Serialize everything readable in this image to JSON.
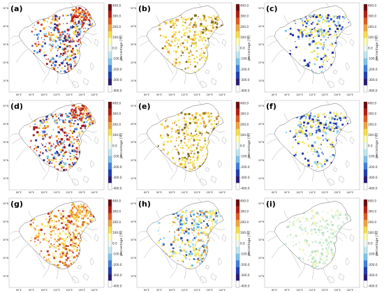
{
  "figure": {
    "panels": [
      {
        "label": "(a)",
        "style": "mixed_red"
      },
      {
        "label": "(b)",
        "style": "yellow_low"
      },
      {
        "label": "(c)",
        "style": "yellow_blue"
      },
      {
        "label": "(d)",
        "style": "mixed_red"
      },
      {
        "label": "(e)",
        "style": "yellow_low"
      },
      {
        "label": "(f)",
        "style": "yellow_blue"
      },
      {
        "label": "(g)",
        "style": "orange_high"
      },
      {
        "label": "(h)",
        "style": "mixed_cyan"
      },
      {
        "label": "(i)",
        "style": "green_low"
      }
    ],
    "lat_ticks": [
      "50°N",
      "40°N",
      "30°N",
      "20°N",
      "10°N"
    ],
    "lon_ticks": [
      "80°E",
      "90°E",
      "100°E",
      "110°E",
      "120°E",
      "130°E",
      "140°E"
    ],
    "colorbar": {
      "title": "percentage [%]",
      "ticks": [
        "400.0",
        "300.0",
        "200.0",
        "100.0",
        "0.0",
        "-100.0",
        "-200.0",
        "-300.0",
        "-400.0"
      ],
      "colors": [
        "#ffffff",
        "#2b1a7a",
        "#1f3fb5",
        "#3f7fe0",
        "#7fc4ee",
        "#bfe9f2",
        "#eef9f2",
        "#ffffb0",
        "#f8e04a",
        "#f2a43a",
        "#e35a22",
        "#b81d12",
        "#6e0a0a"
      ]
    },
    "style_colors": {
      "mixed_red": [
        "#a81818",
        "#d8432a",
        "#f0a23a",
        "#f6e04a",
        "#7fc8ea",
        "#4f7fd8",
        "#2a2a8a"
      ],
      "yellow_low": [
        "#f7ee7a",
        "#f4e24e",
        "#f0c845",
        "#e8a040",
        "#7f6a2a"
      ],
      "yellow_blue": [
        "#f4e24e",
        "#f7ee7a",
        "#3a5fd0",
        "#2030a8",
        "#8fd0ee"
      ],
      "orange_high": [
        "#e0702a",
        "#f0a040",
        "#f5d64a",
        "#b8352a",
        "#f7ee7a"
      ],
      "mixed_cyan": [
        "#f4e24e",
        "#9fd8ef",
        "#5ab0e0",
        "#e8a040",
        "#f7ee7a",
        "#2a4fa0"
      ],
      "green_low": [
        "#e0f2d0",
        "#c8ecc0",
        "#f7f3b0",
        "#d6ede8",
        "#b8e0c8"
      ]
    }
  }
}
